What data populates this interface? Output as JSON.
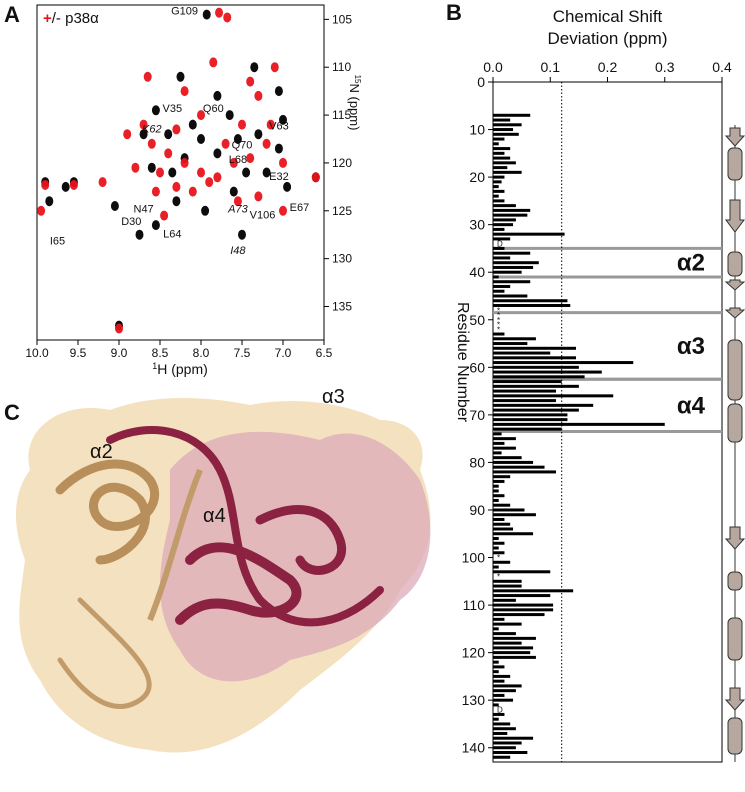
{
  "panels": [
    "A",
    "B",
    "C"
  ],
  "structure": {
    "labels": [
      "α2",
      "α3",
      "α4"
    ]
  },
  "chart_data": [
    {
      "type": "scatter",
      "legend": [
        "+",
        "/- p38α"
      ],
      "xlabel_sup": "1",
      "xlabel": "H (ppm)",
      "ylabel_sup": "15",
      "ylabel": "N (ppm)",
      "xlim": [
        10,
        6.5
      ],
      "ylim": [
        138.5,
        103.5
      ],
      "xticks": [
        {
          "value": 10,
          "label": "10.0"
        },
        9.5,
        {
          "value": 9,
          "label": "9.0"
        },
        8.5,
        {
          "value": 8,
          "label": "8.0"
        },
        7.5,
        {
          "value": 7,
          "label": "7.0"
        },
        6.5
      ],
      "yticks": [
        105,
        110,
        115,
        120,
        125,
        130,
        135
      ],
      "series": [
        {
          "color": "#000000",
          "x": [
            9.9,
            9.55,
            9.85,
            9.05,
            9.0,
            8.55,
            8.75,
            7.5,
            7.93,
            8.55,
            8.7,
            8.2,
            8.35,
            8.0,
            7.8,
            7.55,
            7.3,
            7.2,
            7.05,
            6.6,
            6.95,
            7.6,
            8.1,
            7.65,
            7.05,
            7.35,
            8.25,
            8.6,
            7.45,
            8.3,
            7.95,
            7.8,
            8.4,
            9.65,
            7.0
          ],
          "y": [
            122,
            122,
            124,
            124.5,
            137,
            126.5,
            127.5,
            127.5,
            104.5,
            114.5,
            117,
            119.5,
            121,
            117.5,
            119,
            117.5,
            117,
            121,
            118.5,
            121.5,
            122.5,
            123,
            116,
            115,
            112.5,
            110,
            111,
            120.5,
            121,
            124,
            125,
            113,
            117,
            122.5,
            115.5
          ]
        },
        {
          "color": "#e8141b",
          "x": [
            7.78,
            7.68,
            9.9,
            9.55,
            9.95,
            9.0,
            8.6,
            8.4,
            8.2,
            8.0,
            7.8,
            7.6,
            7.4,
            7.2,
            7.0,
            8.9,
            8.7,
            8.5,
            8.3,
            8.1,
            7.9,
            7.7,
            7.5,
            7.3,
            7.1,
            8.2,
            8.65,
            8.0,
            7.55,
            7.3,
            6.6,
            7.0,
            8.55,
            8.8,
            9.2,
            7.85,
            7.4,
            8.3,
            7.15,
            8.45
          ],
          "y": [
            104.3,
            104.8,
            122.3,
            122.3,
            125,
            137.3,
            118,
            119,
            120,
            121,
            121.5,
            120,
            119.5,
            118,
            120,
            117,
            116,
            121,
            122.5,
            123,
            122,
            118,
            116,
            113,
            110,
            112.5,
            111,
            115,
            124,
            123.5,
            121.5,
            125,
            123,
            120.5,
            122,
            109.5,
            111.5,
            116.5,
            116,
            125.5
          ]
        }
      ],
      "annotations": [
        {
          "text": "G109",
          "x": 8.2,
          "y": 104.5,
          "italic": false
        },
        {
          "text": "V35",
          "x": 8.35,
          "y": 114.7,
          "italic": false
        },
        {
          "text": "Q60",
          "x": 7.85,
          "y": 114.7,
          "italic": false
        },
        {
          "text": "K62",
          "x": 8.6,
          "y": 116.8,
          "italic": true
        },
        {
          "text": "V63",
          "x": 7.05,
          "y": 116.5,
          "italic": false
        },
        {
          "text": "Q70",
          "x": 7.5,
          "y": 118.5,
          "italic": false
        },
        {
          "text": "L68",
          "x": 7.55,
          "y": 120.0,
          "italic": false
        },
        {
          "text": "E32",
          "x": 7.05,
          "y": 121.8,
          "italic": false
        },
        {
          "text": "E67",
          "x": 6.8,
          "y": 125.0,
          "italic": false
        },
        {
          "text": "N47",
          "x": 8.7,
          "y": 125.2,
          "italic": false
        },
        {
          "text": "D30",
          "x": 8.85,
          "y": 126.5,
          "italic": false
        },
        {
          "text": "I65",
          "x": 9.75,
          "y": 128.5,
          "italic": false
        },
        {
          "text": "L64",
          "x": 8.35,
          "y": 127.8,
          "italic": false
        },
        {
          "text": "A73",
          "x": 7.55,
          "y": 125.2,
          "italic": true
        },
        {
          "text": "V106",
          "x": 7.25,
          "y": 125.8,
          "italic": false
        },
        {
          "text": "I48",
          "x": 7.55,
          "y": 129.5,
          "italic": true
        }
      ]
    },
    {
      "type": "bar",
      "orientation": "horizontal",
      "title": [
        "Chemical Shift",
        "Deviation (ppm)"
      ],
      "ylabel": "Residue Number",
      "color": "#000000",
      "xlim": [
        0,
        0.4
      ],
      "ylim": [
        143,
        0
      ],
      "xticks": [
        {
          "value": 0,
          "label": "0.0"
        },
        0.1,
        0.2,
        0.3,
        0.4
      ],
      "yticks": [
        0,
        10,
        20,
        30,
        40,
        50,
        60,
        70,
        80,
        90,
        100,
        110,
        120,
        130,
        140
      ],
      "threshold": 0.12,
      "x": [
        1,
        2,
        3,
        4,
        5,
        6,
        7,
        8,
        9,
        10,
        11,
        12,
        13,
        14,
        15,
        16,
        17,
        18,
        19,
        20,
        21,
        22,
        23,
        24,
        25,
        26,
        27,
        28,
        29,
        30,
        31,
        32,
        33,
        34,
        35,
        36,
        37,
        38,
        39,
        40,
        41,
        42,
        43,
        44,
        45,
        46,
        47,
        48,
        49,
        50,
        51,
        52,
        53,
        54,
        55,
        56,
        57,
        58,
        59,
        60,
        61,
        62,
        63,
        64,
        65,
        66,
        67,
        68,
        69,
        70,
        71,
        72,
        73,
        74,
        75,
        76,
        77,
        78,
        79,
        80,
        81,
        82,
        83,
        84,
        85,
        86,
        87,
        88,
        89,
        90,
        91,
        92,
        93,
        94,
        95,
        96,
        97,
        98,
        99,
        100,
        101,
        102,
        103,
        104,
        105,
        106,
        107,
        108,
        109,
        110,
        111,
        112,
        113,
        114,
        115,
        116,
        117,
        118,
        119,
        120,
        121,
        122,
        123,
        124,
        125,
        126,
        127,
        128,
        129,
        130,
        131,
        132,
        133,
        134,
        135,
        136,
        137,
        138,
        139,
        140,
        141,
        142
      ],
      "values": [
        null,
        null,
        null,
        null,
        null,
        null,
        0.065,
        0.03,
        0.05,
        0.035,
        0.045,
        0.02,
        0.01,
        0.03,
        0.02,
        0.03,
        0.04,
        0.025,
        0.05,
        0.02,
        0.015,
        0.01,
        0.02,
        0.01,
        0.02,
        0.04,
        0.065,
        0.06,
        0.04,
        0.035,
        0.02,
        0.125,
        0.03,
        null,
        0.02,
        0.065,
        0.03,
        0.08,
        0.07,
        0.05,
        0.01,
        0.065,
        0.03,
        0.02,
        0.06,
        0.13,
        0.135,
        null,
        null,
        null,
        null,
        null,
        0.02,
        0.075,
        0.06,
        0.145,
        0.1,
        0.145,
        0.245,
        0.15,
        0.19,
        0.16,
        0.12,
        0.15,
        0.11,
        0.21,
        0.11,
        0.175,
        0.15,
        0.13,
        0.13,
        0.3,
        0.12,
        0.015,
        0.04,
        0.02,
        0.04,
        0.015,
        0.05,
        0.07,
        0.09,
        0.11,
        0.03,
        0.02,
        0.01,
        0.01,
        0.02,
        0.01,
        0.03,
        0.055,
        0.075,
        0.02,
        0.03,
        0.035,
        0.07,
        0.01,
        0.02,
        0.01,
        0.02,
        null,
        0.03,
        0.01,
        0.1,
        null,
        0.05,
        0.05,
        0.14,
        0.1,
        0.04,
        0.105,
        0.105,
        0.09,
        0.02,
        0.05,
        0.01,
        0.04,
        0.075,
        0.05,
        0.07,
        0.065,
        0.075,
        0.01,
        0.02,
        0.01,
        0.03,
        0.02,
        0.05,
        0.04,
        0.02,
        0.035,
        0.01,
        null,
        0.02,
        0.01,
        0.03,
        0.04,
        0.025,
        0.07,
        0.05,
        0.04,
        0.06,
        0.03
      ],
      "markers": [
        {
          "x": 34,
          "label": "D"
        },
        {
          "x": 48,
          "label": "*"
        },
        {
          "x": 49,
          "label": "*"
        },
        {
          "x": 50,
          "label": "*"
        },
        {
          "x": 51,
          "label": "*"
        },
        {
          "x": 52,
          "label": "*"
        },
        {
          "x": 100,
          "label": "*"
        },
        {
          "x": 104,
          "label": "*"
        },
        {
          "x": 132,
          "label": "D"
        }
      ],
      "helices": [
        {
          "label": "α2",
          "start": 35,
          "end": 41
        },
        {
          "label": "α3",
          "start": 48.5,
          "end": 62.5
        },
        {
          "label": "α4",
          "start": 62.5,
          "end": 73.5
        }
      ]
    }
  ]
}
